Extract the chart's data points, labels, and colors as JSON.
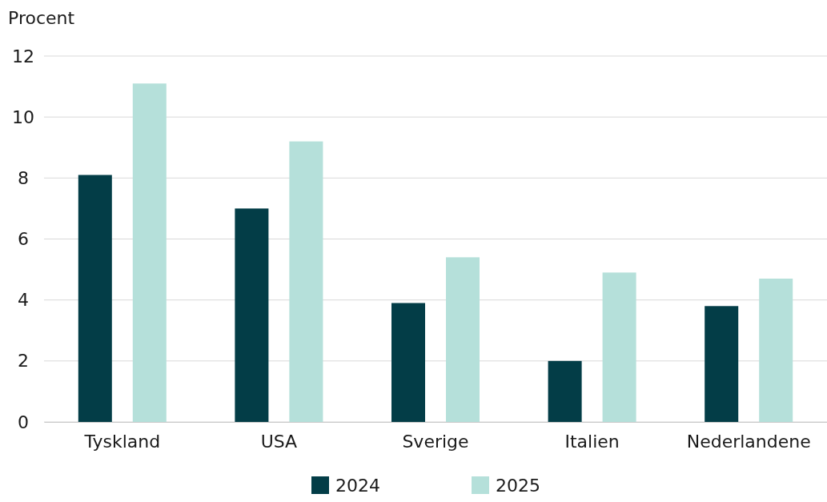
{
  "chart_data": {
    "type": "bar",
    "ylabel": "Procent",
    "categories": [
      "Tyskland",
      "USA",
      "Sverige",
      "Italien",
      "Nederlandene"
    ],
    "series": [
      {
        "name": "2024",
        "color": "#033d47",
        "values": [
          8.1,
          7.0,
          3.9,
          2.0,
          3.8
        ]
      },
      {
        "name": "2025",
        "color": "#b5e0da",
        "values": [
          11.1,
          9.2,
          5.4,
          4.9,
          4.7
        ]
      }
    ],
    "ylim": [
      0,
      12
    ],
    "yticks": [
      0,
      2,
      4,
      6,
      8,
      10,
      12
    ],
    "grid": "y",
    "legend": "bottom"
  }
}
